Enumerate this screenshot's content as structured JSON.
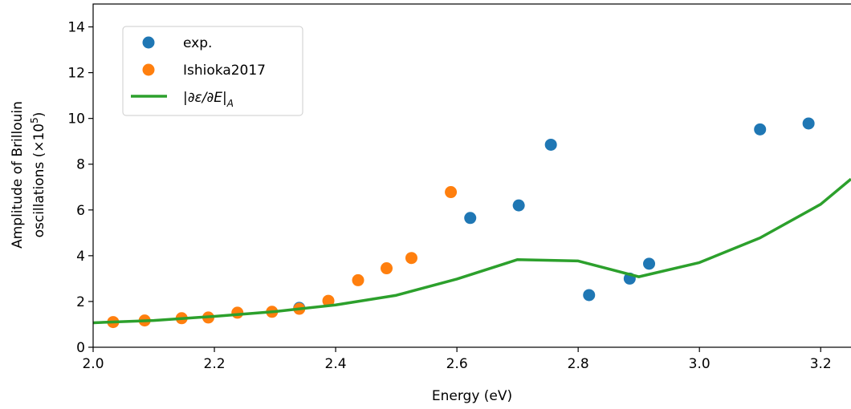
{
  "chart_data": {
    "type": "scatter",
    "xlabel": "Energy (eV)",
    "ylabel_line1": "Amplitude of Brillouin",
    "ylabel_line2": "oscillations (×10",
    "ylabel_sup": "5",
    "ylabel_close": ")",
    "xlim": [
      2.0,
      3.25
    ],
    "ylim": [
      0,
      15
    ],
    "xticks": [
      "2.0",
      "2.2",
      "2.4",
      "2.6",
      "2.8",
      "3.0",
      "3.2"
    ],
    "yticks": [
      "0",
      "2",
      "4",
      "6",
      "8",
      "10",
      "12",
      "14"
    ],
    "grid": false,
    "legend_position": "top-left",
    "colors": {
      "exp": "#1f77b4",
      "ishioka": "#ff7f0e",
      "line": "#2ca02c"
    },
    "series": [
      {
        "name": "exp.",
        "kind": "scatter",
        "points": [
          [
            2.34,
            1.72
          ],
          [
            2.622,
            5.65
          ],
          [
            2.702,
            6.2
          ],
          [
            2.755,
            8.85
          ],
          [
            2.818,
            2.28
          ],
          [
            2.885,
            3.0
          ],
          [
            2.917,
            3.65
          ],
          [
            3.1,
            9.52
          ],
          [
            3.18,
            9.78
          ]
        ]
      },
      {
        "name": "Ishioka2017",
        "kind": "scatter",
        "points": [
          [
            2.033,
            1.1
          ],
          [
            2.085,
            1.17
          ],
          [
            2.146,
            1.27
          ],
          [
            2.19,
            1.3
          ],
          [
            2.238,
            1.51
          ],
          [
            2.295,
            1.55
          ],
          [
            2.34,
            1.68
          ],
          [
            2.388,
            2.03
          ],
          [
            2.437,
            2.93
          ],
          [
            2.484,
            3.45
          ],
          [
            2.525,
            3.9
          ],
          [
            2.59,
            6.78
          ]
        ]
      },
      {
        "name": "|∂ε/∂E|A",
        "kind": "line",
        "points": [
          [
            2.0,
            1.07
          ],
          [
            2.1,
            1.17
          ],
          [
            2.2,
            1.35
          ],
          [
            2.3,
            1.56
          ],
          [
            2.4,
            1.85
          ],
          [
            2.5,
            2.27
          ],
          [
            2.6,
            2.98
          ],
          [
            2.7,
            3.83
          ],
          [
            2.8,
            3.77
          ],
          [
            2.9,
            3.08
          ],
          [
            3.0,
            3.7
          ],
          [
            3.1,
            4.78
          ],
          [
            3.2,
            6.25
          ],
          [
            3.25,
            7.35
          ]
        ]
      }
    ],
    "legend": {
      "exp_label": "exp.",
      "ishioka_label": "Ishioka2017",
      "line_label_pre": "|∂ε/∂E|",
      "line_label_sub": "A"
    }
  }
}
